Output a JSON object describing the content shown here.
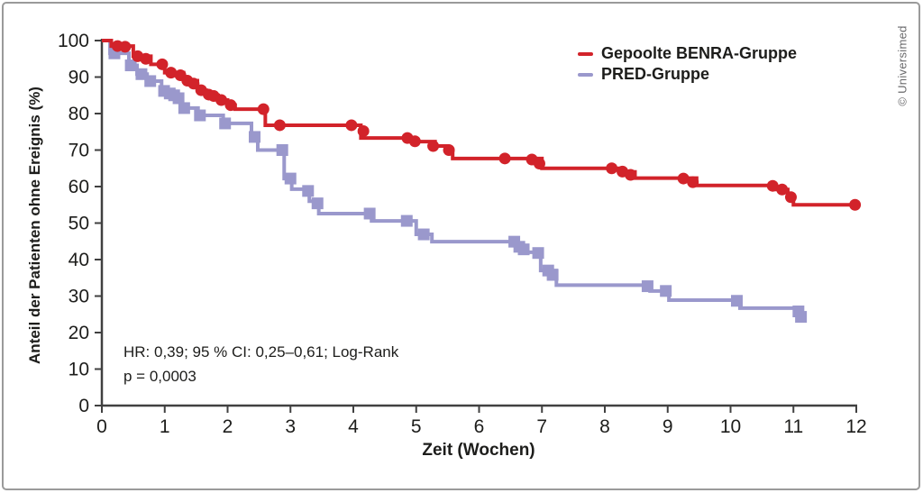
{
  "copyright": "© Universimed",
  "chart_data": {
    "type": "line",
    "subtype": "kaplan-meier-step-curves",
    "title": "",
    "xlabel": "Zeit (Wochen)",
    "ylabel": "Anteil der Patienten ohne Ereignis (%)",
    "xlim": [
      0,
      12
    ],
    "ylim": [
      0,
      100
    ],
    "x_ticks": [
      0,
      1,
      2,
      3,
      4,
      5,
      6,
      7,
      8,
      9,
      10,
      11,
      12
    ],
    "y_ticks": [
      0,
      10,
      20,
      30,
      40,
      50,
      60,
      70,
      80,
      90,
      100
    ],
    "grid": false,
    "axis_color": "#404040",
    "text_color": "#1d1d1b",
    "annotation": {
      "line1": "HR: 0,39; 95 % CI: 0,25–0,61; Log-Rank",
      "line2": "p = 0,0003"
    },
    "legend": {
      "position": "top-right",
      "entries": [
        {
          "label": "Gepoolte BENRA-Gruppe",
          "color": "#d2232a"
        },
        {
          "label": "PRED-Gruppe",
          "color": "#9a98cc"
        }
      ]
    },
    "series": [
      {
        "id": "benra",
        "name": "Gepoolte BENRA-Gruppe",
        "color": "#d2232a",
        "marker": "circle",
        "step": true,
        "end_x": 12,
        "steps": [
          [
            0,
            100
          ],
          [
            0.15,
            98.5
          ],
          [
            0.5,
            95.7
          ],
          [
            0.78,
            93.5
          ],
          [
            1.0,
            91.2
          ],
          [
            1.3,
            89.0
          ],
          [
            1.52,
            86.4
          ],
          [
            1.66,
            85.0
          ],
          [
            1.85,
            83.7
          ],
          [
            2.0,
            82.3
          ],
          [
            2.12,
            81.2
          ],
          [
            2.6,
            76.8
          ],
          [
            4.12,
            73.3
          ],
          [
            4.93,
            72.3
          ],
          [
            5.3,
            71.1
          ],
          [
            5.5,
            70.0
          ],
          [
            5.58,
            67.7
          ],
          [
            7.0,
            65.0
          ],
          [
            8.3,
            64.0
          ],
          [
            8.48,
            62.3
          ],
          [
            9.46,
            60.3
          ],
          [
            10.72,
            59.2
          ],
          [
            10.91,
            57.0
          ],
          [
            11.0,
            55.0
          ]
        ],
        "markers": [
          [
            0.25,
            98.5
          ],
          [
            0.37,
            98.3
          ],
          [
            0.57,
            95.7
          ],
          [
            0.7,
            95.0
          ],
          [
            0.96,
            93.5
          ],
          [
            1.1,
            91.2
          ],
          [
            1.25,
            90.5
          ],
          [
            1.36,
            89.0
          ],
          [
            1.46,
            88.2
          ],
          [
            1.58,
            86.4
          ],
          [
            1.7,
            85.2
          ],
          [
            1.78,
            84.8
          ],
          [
            1.9,
            83.7
          ],
          [
            2.05,
            82.3
          ],
          [
            2.57,
            81.2
          ],
          [
            2.83,
            76.8
          ],
          [
            3.97,
            76.8
          ],
          [
            4.16,
            75.2
          ],
          [
            4.86,
            73.3
          ],
          [
            4.98,
            72.4
          ],
          [
            5.27,
            71.1
          ],
          [
            5.52,
            70.0
          ],
          [
            6.41,
            67.7
          ],
          [
            6.84,
            67.4
          ],
          [
            6.96,
            66.3
          ],
          [
            8.11,
            65.0
          ],
          [
            8.28,
            64.1
          ],
          [
            8.41,
            63.2
          ],
          [
            9.25,
            62.2
          ],
          [
            9.4,
            61.2
          ],
          [
            10.67,
            60.2
          ],
          [
            10.82,
            59.2
          ],
          [
            10.96,
            57.1
          ],
          [
            11.98,
            55.0
          ]
        ]
      },
      {
        "id": "pred",
        "name": "PRED-Gruppe",
        "color": "#9a98cc",
        "marker": "square",
        "step": true,
        "end_x": 11.18,
        "steps": [
          [
            0,
            100
          ],
          [
            0.13,
            96.5
          ],
          [
            0.43,
            93.2
          ],
          [
            0.56,
            90.8
          ],
          [
            0.72,
            88.9
          ],
          [
            0.95,
            86.2
          ],
          [
            1.12,
            84.8
          ],
          [
            1.28,
            81.5
          ],
          [
            1.53,
            79.5
          ],
          [
            1.93,
            77.3
          ],
          [
            2.38,
            73.6
          ],
          [
            2.48,
            70.0
          ],
          [
            2.9,
            62.2
          ],
          [
            3.02,
            59.3
          ],
          [
            3.3,
            56.0
          ],
          [
            3.45,
            52.6
          ],
          [
            4.29,
            50.6
          ],
          [
            5.0,
            46.9
          ],
          [
            5.25,
            44.9
          ],
          [
            6.6,
            43.5
          ],
          [
            6.73,
            42.0
          ],
          [
            6.98,
            37.0
          ],
          [
            7.23,
            33.0
          ],
          [
            8.72,
            31.4
          ],
          [
            9.02,
            28.9
          ],
          [
            10.15,
            26.7
          ],
          [
            11.1,
            24.3
          ]
        ],
        "markers": [
          [
            0.2,
            96.5
          ],
          [
            0.46,
            93.2
          ],
          [
            0.63,
            90.8
          ],
          [
            0.77,
            88.9
          ],
          [
            0.99,
            86.2
          ],
          [
            1.08,
            85.5
          ],
          [
            1.15,
            85.0
          ],
          [
            1.22,
            84.2
          ],
          [
            1.31,
            81.5
          ],
          [
            1.56,
            79.5
          ],
          [
            1.96,
            77.3
          ],
          [
            2.43,
            73.6
          ],
          [
            2.87,
            70.0
          ],
          [
            3.0,
            62.2
          ],
          [
            3.28,
            58.8
          ],
          [
            3.43,
            55.4
          ],
          [
            4.26,
            52.6
          ],
          [
            4.85,
            50.6
          ],
          [
            5.12,
            46.9
          ],
          [
            6.56,
            44.9
          ],
          [
            6.64,
            43.5
          ],
          [
            6.71,
            42.8
          ],
          [
            6.94,
            41.8
          ],
          [
            7.1,
            37.0
          ],
          [
            7.17,
            35.8
          ],
          [
            8.68,
            32.7
          ],
          [
            8.97,
            31.4
          ],
          [
            10.1,
            28.7
          ],
          [
            11.08,
            25.8
          ],
          [
            11.12,
            24.3
          ]
        ]
      }
    ]
  }
}
